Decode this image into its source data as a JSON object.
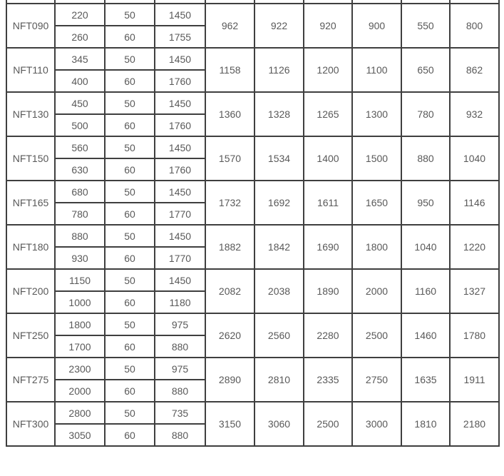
{
  "colors": {
    "border": "#3f3f3f",
    "text": "#595959",
    "background": "#ffffff"
  },
  "table": {
    "groups": [
      {
        "model": "NFT090",
        "rows": [
          [
            "220",
            "50",
            "1450"
          ],
          [
            "260",
            "60",
            "1755"
          ]
        ],
        "merged": [
          "962",
          "922",
          "920",
          "900",
          "550",
          "800"
        ]
      },
      {
        "model": "NFT110",
        "rows": [
          [
            "345",
            "50",
            "1450"
          ],
          [
            "400",
            "60",
            "1760"
          ]
        ],
        "merged": [
          "1158",
          "1126",
          "1200",
          "1100",
          "650",
          "862"
        ]
      },
      {
        "model": "NFT130",
        "rows": [
          [
            "450",
            "50",
            "1450"
          ],
          [
            "500",
            "60",
            "1760"
          ]
        ],
        "merged": [
          "1360",
          "1328",
          "1265",
          "1300",
          "780",
          "932"
        ]
      },
      {
        "model": "NFT150",
        "rows": [
          [
            "560",
            "50",
            "1450"
          ],
          [
            "630",
            "60",
            "1760"
          ]
        ],
        "merged": [
          "1570",
          "1534",
          "1400",
          "1500",
          "880",
          "1040"
        ]
      },
      {
        "model": "NFT165",
        "rows": [
          [
            "680",
            "50",
            "1450"
          ],
          [
            "780",
            "60",
            "1770"
          ]
        ],
        "merged": [
          "1732",
          "1692",
          "1611",
          "1650",
          "950",
          "1146"
        ]
      },
      {
        "model": "NFT180",
        "rows": [
          [
            "880",
            "50",
            "1450"
          ],
          [
            "930",
            "60",
            "1770"
          ]
        ],
        "merged": [
          "1882",
          "1842",
          "1690",
          "1800",
          "1040",
          "1220"
        ]
      },
      {
        "model": "NFT200",
        "rows": [
          [
            "1150",
            "50",
            "1450"
          ],
          [
            "1000",
            "60",
            "1180"
          ]
        ],
        "merged": [
          "2082",
          "2038",
          "1890",
          "2000",
          "1160",
          "1327"
        ]
      },
      {
        "model": "NFT250",
        "rows": [
          [
            "1800",
            "50",
            "975"
          ],
          [
            "1700",
            "60",
            "880"
          ]
        ],
        "merged": [
          "2620",
          "2560",
          "2280",
          "2500",
          "1460",
          "1780"
        ]
      },
      {
        "model": "NFT275",
        "rows": [
          [
            "2300",
            "50",
            "975"
          ],
          [
            "2000",
            "60",
            "880"
          ]
        ],
        "merged": [
          "2890",
          "2810",
          "2335",
          "2750",
          "1635",
          "1911"
        ]
      },
      {
        "model": "NFT300",
        "rows": [
          [
            "2800",
            "50",
            "735"
          ],
          [
            "3050",
            "60",
            "880"
          ]
        ],
        "merged": [
          "3150",
          "3060",
          "2500",
          "3000",
          "1810",
          "2180"
        ]
      }
    ],
    "clipped_top_row_cells": [
      "",
      "",
      "",
      "",
      "",
      "",
      "",
      "",
      "",
      ""
    ]
  }
}
